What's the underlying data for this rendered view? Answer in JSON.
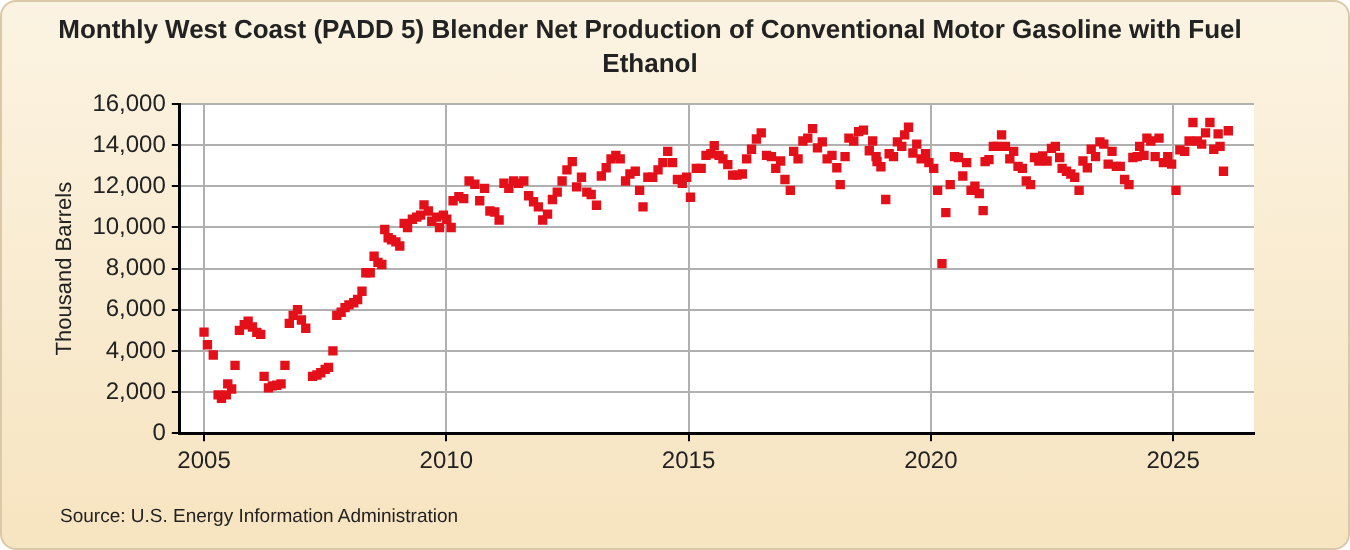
{
  "chart_data": {
    "type": "scatter",
    "title": "Monthly West Coast (PADD 5) Blender Net Production of Conventional Motor Gasoline with Fuel Ethanol",
    "ylabel": "Thousand Barrels",
    "annotations": [
      "Source: U.S. Energy Information Administration"
    ],
    "marker": "square",
    "grid": true,
    "xlim": [
      2004.5,
      2026.67
    ],
    "xticks": [
      2005,
      2010,
      2015,
      2020,
      2025
    ],
    "ylim": [
      0,
      16000
    ],
    "yticks": [
      {
        "value": 0,
        "label": "0"
      },
      {
        "value": 2000,
        "label": "2,000"
      },
      {
        "value": 4000,
        "label": "4,000"
      },
      {
        "value": 6000,
        "label": "6,000"
      },
      {
        "value": 8000,
        "label": "8,000"
      },
      {
        "value": 10000,
        "label": "10,000"
      },
      {
        "value": 12000,
        "label": "12,000"
      },
      {
        "value": 14000,
        "label": "14,000"
      },
      {
        "value": 16000,
        "label": "16,000"
      }
    ],
    "series": [
      {
        "color": "#e3101a",
        "x": [
          2005.0,
          2005.07,
          2005.19,
          2005.29,
          2005.36,
          2005.46,
          2005.49,
          2005.57,
          2005.64,
          2005.73,
          2005.83,
          2005.91,
          2006.0,
          2006.09,
          2006.17,
          2006.24,
          2006.33,
          2006.41,
          2006.5,
          2006.59,
          2006.67,
          2006.76,
          2006.84,
          2006.93,
          2007.01,
          2007.1,
          2007.24,
          2007.33,
          2007.41,
          2007.5,
          2007.57,
          2007.66,
          2007.74,
          2007.83,
          2007.91,
          2007.99,
          2008.09,
          2008.17,
          2008.26,
          2008.34,
          2008.43,
          2008.51,
          2008.59,
          2008.67,
          2008.73,
          2008.8,
          2008.87,
          2008.96,
          2009.04,
          2009.13,
          2009.2,
          2009.3,
          2009.39,
          2009.47,
          2009.54,
          2009.63,
          2009.7,
          2009.8,
          2009.86,
          2009.94,
          2010.01,
          2010.1,
          2010.14,
          2010.26,
          2010.36,
          2010.47,
          2010.59,
          2010.69,
          2010.79,
          2010.9,
          2011.0,
          2011.09,
          2011.19,
          2011.29,
          2011.39,
          2011.49,
          2011.6,
          2011.7,
          2011.8,
          2011.9,
          2011.99,
          2012.09,
          2012.19,
          2012.29,
          2012.39,
          2012.49,
          2012.6,
          2012.69,
          2012.79,
          2012.9,
          2012.99,
          2013.1,
          2013.2,
          2013.3,
          2013.4,
          2013.5,
          2013.59,
          2013.7,
          2013.79,
          2013.9,
          2013.99,
          2014.06,
          2014.16,
          2014.26,
          2014.37,
          2014.47,
          2014.57,
          2014.67,
          2014.77,
          2014.87,
          2014.96,
          2015.04,
          2015.16,
          2015.26,
          2015.36,
          2015.46,
          2015.53,
          2015.63,
          2015.71,
          2015.81,
          2015.91,
          2016.0,
          2016.11,
          2016.2,
          2016.3,
          2016.4,
          2016.5,
          2016.61,
          2016.71,
          2016.8,
          2016.9,
          2016.99,
          2017.1,
          2017.17,
          2017.26,
          2017.36,
          2017.46,
          2017.56,
          2017.66,
          2017.76,
          2017.86,
          2017.96,
          2018.06,
          2018.13,
          2018.23,
          2018.31,
          2018.41,
          2018.51,
          2018.61,
          2018.73,
          2018.8,
          2018.87,
          2018.89,
          2018.97,
          2019.07,
          2019.14,
          2019.23,
          2019.31,
          2019.4,
          2019.46,
          2019.54,
          2019.63,
          2019.71,
          2019.8,
          2019.89,
          2019.96,
          2020.06,
          2020.14,
          2020.23,
          2020.31,
          2020.4,
          2020.49,
          2020.57,
          2020.66,
          2020.74,
          2020.83,
          2020.91,
          2021.0,
          2021.08,
          2021.12,
          2021.2,
          2021.29,
          2021.37,
          2021.46,
          2021.54,
          2021.63,
          2021.71,
          2021.8,
          2021.89,
          2021.97,
          2022.06,
          2022.14,
          2022.23,
          2022.31,
          2022.4,
          2022.49,
          2022.57,
          2022.66,
          2022.71,
          2022.8,
          2022.89,
          2022.97,
          2023.06,
          2023.14,
          2023.23,
          2023.31,
          2023.4,
          2023.49,
          2023.57,
          2023.66,
          2023.74,
          2023.83,
          2023.91,
          2024.0,
          2024.09,
          2024.17,
          2024.26,
          2024.31,
          2024.4,
          2024.46,
          2024.54,
          2024.63,
          2024.71,
          2024.8,
          2024.89,
          2024.97,
          2025.06,
          2025.14,
          2025.24,
          2025.33,
          2025.41,
          2025.5,
          2025.59,
          2025.67,
          2025.76,
          2025.84,
          2025.93,
          2025.97,
          2026.04,
          2026.14
        ],
        "values": [
          4910,
          4300,
          3800,
          1860,
          1700,
          1860,
          2400,
          2150,
          3300,
          5000,
          5270,
          5450,
          5160,
          4900,
          4800,
          2760,
          2200,
          2300,
          2330,
          2400,
          3300,
          5340,
          5730,
          6000,
          5500,
          5100,
          2760,
          2830,
          2940,
          3100,
          3200,
          4000,
          5730,
          5880,
          6100,
          6240,
          6340,
          6500,
          6900,
          7800,
          7800,
          8600,
          8300,
          8200,
          9900,
          9500,
          9400,
          9300,
          9100,
          10200,
          10000,
          10400,
          10500,
          10600,
          11100,
          10800,
          10300,
          10500,
          10000,
          10600,
          10400,
          10000,
          11300,
          11500,
          11400,
          12260,
          12100,
          11300,
          11900,
          10800,
          10750,
          10360,
          12150,
          11900,
          12260,
          12150,
          12260,
          11540,
          11250,
          11000,
          10360,
          10650,
          11360,
          11720,
          12260,
          12800,
          13200,
          11970,
          12440,
          11720,
          11600,
          11080,
          12500,
          12900,
          13330,
          13500,
          13330,
          12260,
          12600,
          12730,
          11800,
          11000,
          12440,
          12440,
          12800,
          13150,
          13700,
          13150,
          12330,
          12150,
          12440,
          11470,
          12870,
          12870,
          13500,
          13580,
          13980,
          13500,
          13330,
          13050,
          12540,
          12540,
          12600,
          13330,
          13800,
          14300,
          14600,
          13500,
          13440,
          12870,
          13230,
          12330,
          11800,
          13700,
          13330,
          14200,
          14340,
          14800,
          13870,
          14160,
          13330,
          13500,
          12900,
          12080,
          13440,
          14340,
          14200,
          14660,
          14730,
          13730,
          14200,
          13440,
          13200,
          12950,
          11360,
          13580,
          13440,
          14160,
          13940,
          14500,
          14870,
          13620,
          14050,
          13330,
          13580,
          13150,
          12870,
          11800,
          8240,
          10720,
          12080,
          13440,
          13400,
          12500,
          13150,
          11800,
          12000,
          11650,
          10820,
          13200,
          13300,
          13940,
          13940,
          14500,
          13940,
          13330,
          13700,
          12970,
          12870,
          12260,
          12080,
          13400,
          13230,
          13480,
          13230,
          13840,
          13940,
          13400,
          12870,
          12730,
          12600,
          12440,
          11800,
          13230,
          12900,
          13800,
          13440,
          14160,
          14050,
          13080,
          13700,
          12970,
          12970,
          12330,
          12080,
          13400,
          13440,
          13940,
          13500,
          14340,
          14200,
          13440,
          14340,
          13150,
          13440,
          13080,
          11800,
          13770,
          13700,
          14200,
          15100,
          14200,
          14050,
          14600,
          15100,
          13800,
          14550,
          13940,
          12730,
          14700
        ]
      }
    ]
  }
}
